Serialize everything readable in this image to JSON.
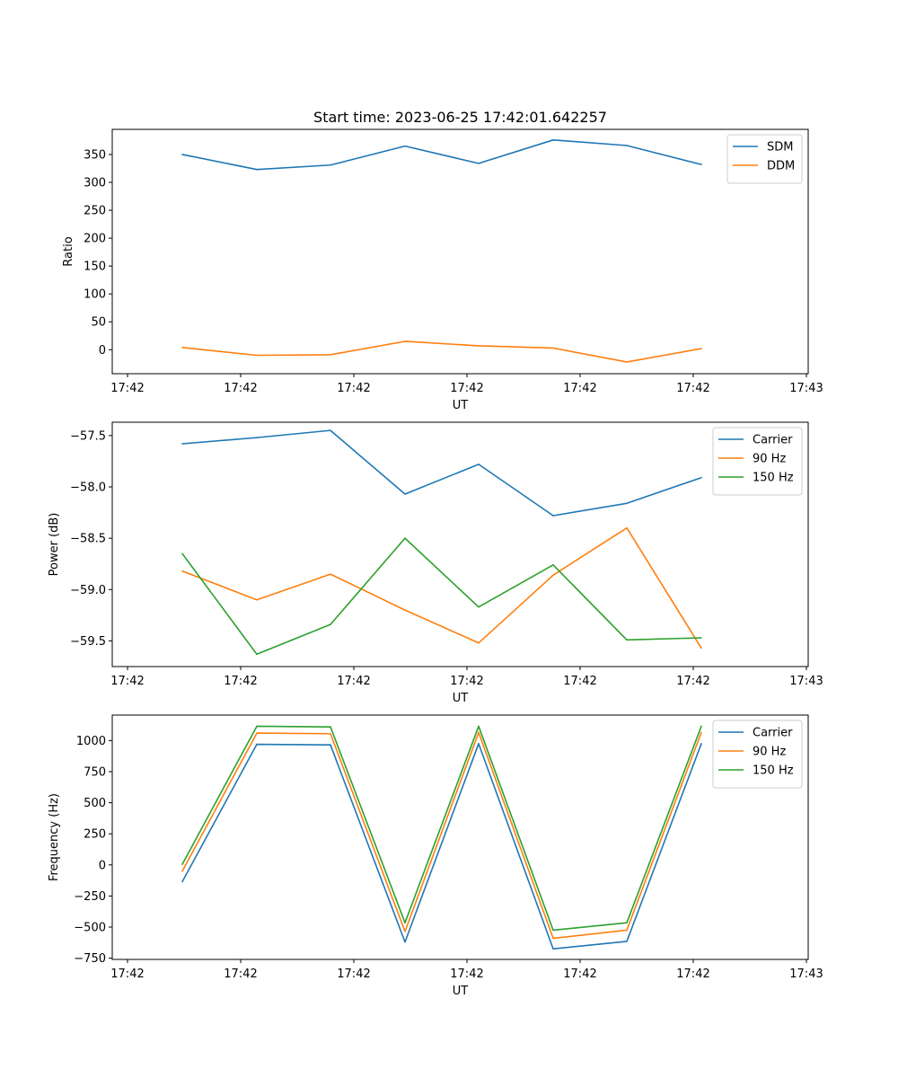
{
  "figure_title": "Start time: 2023-06-25 17:42:01.642257",
  "colors": {
    "blue": "#1f77b4",
    "orange": "#ff7f0e",
    "green": "#2ca02c"
  },
  "chart_data": [
    {
      "type": "line",
      "xlabel": "UT",
      "ylabel": "Ratio",
      "x_tick_labels": [
        "17:42",
        "17:42",
        "17:42",
        "17:42",
        "17:42",
        "17:42",
        "17:43"
      ],
      "yticks": [
        0,
        50,
        100,
        150,
        200,
        250,
        300,
        350
      ],
      "ylim": [
        -43,
        395
      ],
      "legend": "top-right",
      "series": [
        {
          "name": "SDM",
          "color": "#1f77b4",
          "values": [
            350,
            323,
            331,
            365,
            334,
            376,
            366,
            332
          ]
        },
        {
          "name": "DDM",
          "color": "#ff7f0e",
          "values": [
            4,
            -10,
            -9,
            15,
            7,
            3,
            -22,
            2
          ]
        }
      ]
    },
    {
      "type": "line",
      "xlabel": "UT",
      "ylabel": "Power (dB)",
      "x_tick_labels": [
        "17:42",
        "17:42",
        "17:42",
        "17:42",
        "17:42",
        "17:42",
        "17:43"
      ],
      "yticks": [
        -57.5,
        -58.0,
        -58.5,
        -59.0,
        -59.5
      ],
      "ytick_labels": [
        "−57.5",
        "−58.0",
        "−58.5",
        "−59.0",
        "−59.5"
      ],
      "ylim": [
        -59.75,
        -57.37
      ],
      "legend": "top-right",
      "series": [
        {
          "name": "Carrier",
          "color": "#1f77b4",
          "values": [
            -57.58,
            -57.52,
            -57.45,
            -58.07,
            -57.78,
            -58.28,
            -58.16,
            -57.91
          ]
        },
        {
          "name": "90 Hz",
          "color": "#ff7f0e",
          "values": [
            -58.82,
            -59.1,
            -58.85,
            -59.2,
            -59.52,
            -58.86,
            -58.4,
            -59.57
          ]
        },
        {
          "name": "150 Hz",
          "color": "#2ca02c",
          "values": [
            -58.65,
            -59.63,
            -59.34,
            -58.5,
            -59.17,
            -58.76,
            -59.49,
            -59.47
          ]
        }
      ]
    },
    {
      "type": "line",
      "xlabel": "UT",
      "ylabel": "Frequency (Hz)",
      "x_tick_labels": [
        "17:42",
        "17:42",
        "17:42",
        "17:42",
        "17:42",
        "17:42",
        "17:43"
      ],
      "yticks": [
        -750,
        -500,
        -250,
        0,
        250,
        500,
        750,
        1000
      ],
      "ytick_labels": [
        "−750",
        "−500",
        "−250",
        "0",
        "250",
        "500",
        "750",
        "1000"
      ],
      "ylim": [
        -760,
        1205
      ],
      "legend": "top-right",
      "series": [
        {
          "name": "Carrier",
          "color": "#1f77b4",
          "values": [
            -135,
            970,
            965,
            -620,
            975,
            -675,
            -615,
            975
          ]
        },
        {
          "name": "90 Hz",
          "color": "#ff7f0e",
          "values": [
            -50,
            1060,
            1055,
            -535,
            1065,
            -590,
            -525,
            1065
          ]
        },
        {
          "name": "150 Hz",
          "color": "#2ca02c",
          "values": [
            5,
            1115,
            1110,
            -465,
            1115,
            -525,
            -465,
            1115
          ]
        }
      ]
    }
  ]
}
